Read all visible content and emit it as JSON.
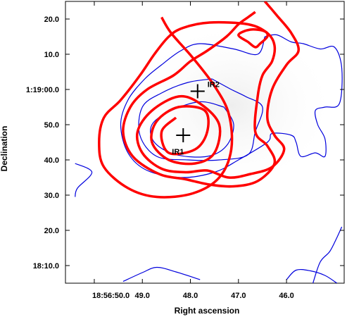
{
  "chart_data": {
    "type": "contour",
    "xlabel": "Right ascension",
    "ylabel": "Declination",
    "x_ticks": [
      {
        "label": "18:56:50.0",
        "ra_offset_s": 0
      },
      {
        "label": "49.0",
        "ra_offset_s": -1
      },
      {
        "label": "48.0",
        "ra_offset_s": -2
      },
      {
        "label": "47.0",
        "ra_offset_s": -3
      },
      {
        "label": "46.0",
        "ra_offset_s": -4
      }
    ],
    "y_ticks": [
      {
        "label": "18:10.0",
        "dec_arcsec": 10
      },
      {
        "label": "20.0",
        "dec_arcsec": 20
      },
      {
        "label": "30.0",
        "dec_arcsec": 30
      },
      {
        "label": "40.0",
        "dec_arcsec": 40
      },
      {
        "label": "50.0",
        "dec_arcsec": 50
      },
      {
        "label": "1:19:00.0",
        "dec_arcsec": 60
      },
      {
        "label": "10.0",
        "dec_arcsec": 70
      },
      {
        "label": "20.0",
        "dec_arcsec": 80
      }
    ],
    "xlim": [
      0.6,
      -5.2
    ],
    "ylim": [
      5,
      85
    ],
    "markers": [
      {
        "label": "IR1",
        "ra_offset_s": -1.85,
        "dec_arcsec": 47
      },
      {
        "label": "IR2",
        "ra_offset_s": -2.15,
        "dec_arcsec": 59.5
      }
    ],
    "colors": {
      "red_contours": "#ff0000",
      "blue_contours": "#0000dd"
    },
    "red_contours": [
      [
        [
          -1.4,
          80.5
        ],
        [
          -1.6,
          76
        ],
        [
          -2.05,
          69
        ],
        [
          -2.5,
          61
        ],
        [
          -2.8,
          53
        ],
        [
          -2.85,
          43
        ],
        [
          -2.6,
          35
        ],
        [
          -2.05,
          30.5
        ],
        [
          -1.3,
          29.5
        ],
        [
          -0.7,
          32
        ],
        [
          -0.2,
          38
        ],
        [
          -0.1,
          45
        ],
        [
          -0.2,
          52
        ],
        [
          -0.55,
          57
        ],
        [
          -0.95,
          64
        ],
        [
          -1.25,
          70
        ],
        [
          -1.55,
          75
        ],
        [
          -1.85,
          77.5
        ],
        [
          -2.4,
          79
        ],
        [
          -3.2,
          78.5
        ],
        [
          -3.6,
          76
        ],
        [
          -3.75,
          72.5
        ],
        [
          -3.7,
          68
        ],
        [
          -3.5,
          64
        ],
        [
          -3.4,
          58
        ],
        [
          -3.35,
          48
        ],
        [
          -3.6,
          44
        ],
        [
          -3.75,
          39
        ],
        [
          -3.4,
          34
        ],
        [
          -2.9,
          32.5
        ],
        [
          -2.4,
          33
        ],
        [
          -1.9,
          34.5
        ],
        [
          -1.35,
          36
        ],
        [
          -0.8,
          41
        ],
        [
          -0.6,
          48
        ],
        [
          -0.75,
          55
        ],
        [
          -1.1,
          60
        ],
        [
          -1.65,
          64
        ],
        [
          -2.0,
          68
        ],
        [
          -2.35,
          71
        ],
        [
          -2.75,
          75
        ],
        [
          -3.0,
          78.5
        ],
        [
          -3.2,
          80.5
        ],
        [
          -3.35,
          82
        ]
      ],
      [
        [
          -3.55,
          85
        ],
        [
          -3.8,
          81
        ],
        [
          -4.1,
          76
        ],
        [
          -4.25,
          71
        ],
        [
          -4.0,
          67
        ],
        [
          -3.7,
          60
        ],
        [
          -3.6,
          52
        ],
        [
          -3.75,
          47
        ],
        [
          -3.95,
          43
        ],
        [
          -3.7,
          38
        ],
        [
          -3.25,
          36
        ],
        [
          -2.8,
          35
        ],
        [
          -2.35,
          37
        ],
        [
          -1.9,
          36.5
        ],
        [
          -1.4,
          37.5
        ],
        [
          -1.0,
          42
        ],
        [
          -0.9,
          48
        ],
        [
          -1.2,
          54
        ],
        [
          -1.75,
          58
        ],
        [
          -2.2,
          56
        ],
        [
          -2.6,
          50
        ],
        [
          -2.5,
          42
        ],
        [
          -2.1,
          39
        ],
        [
          -1.55,
          40
        ],
        [
          -1.2,
          45
        ],
        [
          -1.3,
          51
        ],
        [
          -1.75,
          55
        ],
        [
          -2.3,
          54
        ],
        [
          -2.35,
          48
        ],
        [
          -2.1,
          43
        ],
        [
          -1.55,
          42
        ],
        [
          -1.4,
          48
        ],
        [
          -1.7,
          52
        ]
      ],
      [
        [
          -3.2,
          73.5
        ],
        [
          -3.35,
          72
        ],
        [
          -3.45,
          73
        ],
        [
          -3.6,
          75
        ],
        [
          -3.55,
          76.5
        ],
        [
          -3.25,
          77
        ],
        [
          -3.0,
          75.5
        ],
        [
          -3.2,
          73.5
        ]
      ]
    ],
    "blue_contours": [
      [
        [
          -0.6,
          5.5
        ],
        [
          -1.0,
          8
        ],
        [
          -1.3,
          9.5
        ],
        [
          -1.7,
          8.2
        ],
        [
          -2.2,
          6
        ]
      ],
      [
        [
          0.4,
          39
        ],
        [
          0.05,
          36.5
        ],
        [
          0.35,
          32
        ],
        [
          0.4,
          29.5
        ]
      ],
      [
        [
          -3.55,
          75
        ],
        [
          -3.8,
          75.5
        ],
        [
          -4.1,
          73.5
        ],
        [
          -4.35,
          73
        ],
        [
          -4.7,
          71.5
        ],
        [
          -5.0,
          72
        ],
        [
          -5.15,
          66
        ],
        [
          -5.1,
          56
        ],
        [
          -4.8,
          55
        ],
        [
          -4.6,
          54
        ],
        [
          -4.65,
          50
        ],
        [
          -4.8,
          46
        ],
        [
          -4.8,
          41
        ],
        [
          -4.6,
          42
        ],
        [
          -4.3,
          41
        ],
        [
          -4.2,
          45
        ],
        [
          -4.1,
          47
        ],
        [
          -3.7,
          47.5
        ],
        [
          -3.6,
          45
        ],
        [
          -3.0,
          40
        ],
        [
          -2.5,
          36.5
        ],
        [
          -1.8,
          35
        ],
        [
          -1.1,
          37
        ],
        [
          -0.7,
          42
        ],
        [
          -0.55,
          50
        ],
        [
          -0.7,
          57
        ],
        [
          -1.05,
          63
        ],
        [
          -1.4,
          67
        ],
        [
          -1.8,
          71
        ],
        [
          -2.2,
          73
        ],
        [
          -2.9,
          71.5
        ],
        [
          -3.4,
          70
        ],
        [
          -3.55,
          75
        ]
      ],
      [
        [
          -2.45,
          63
        ],
        [
          -2.85,
          60
        ],
        [
          -3.15,
          58
        ],
        [
          -3.5,
          55
        ],
        [
          -3.35,
          48
        ],
        [
          -3.2,
          41.5
        ],
        [
          -2.6,
          40
        ],
        [
          -1.95,
          40
        ],
        [
          -1.3,
          41
        ],
        [
          -0.95,
          47
        ],
        [
          -1.0,
          55
        ],
        [
          -1.4,
          59
        ],
        [
          -1.95,
          62
        ],
        [
          -2.45,
          63
        ]
      ],
      [
        [
          -2.7,
          55
        ],
        [
          -2.9,
          50
        ],
        [
          -2.75,
          44
        ],
        [
          -2.35,
          41
        ],
        [
          -1.7,
          41.5
        ],
        [
          -1.25,
          45
        ],
        [
          -1.2,
          50
        ],
        [
          -1.6,
          54
        ],
        [
          -2.2,
          56.5
        ],
        [
          -2.7,
          55
        ]
      ],
      [
        [
          -4.0,
          6
        ],
        [
          -4.2,
          8.7
        ],
        [
          -4.5,
          8.5
        ],
        [
          -4.8,
          7.2
        ],
        [
          -5.05,
          5
        ]
      ],
      [
        [
          -5.15,
          21
        ],
        [
          -5.05,
          18
        ],
        [
          -4.9,
          14
        ],
        [
          -4.7,
          11
        ],
        [
          -4.55,
          5
        ]
      ]
    ]
  }
}
